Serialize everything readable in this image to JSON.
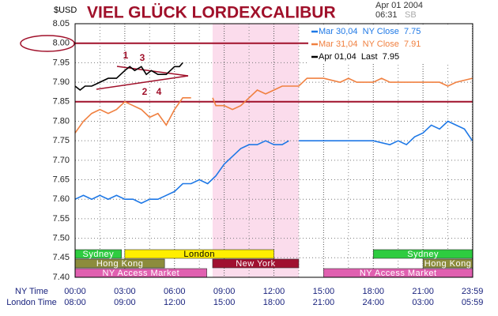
{
  "chart_data": {
    "type": "line",
    "title": "VIEL GLÜCK LORDEXCALIBUR",
    "ylabel": "$USD",
    "date": "Apr 01 2004",
    "time": "06:31",
    "tag": "SB",
    "xrow_labels": [
      "NY Time",
      "London Time"
    ],
    "xlim": [
      0,
      24
    ],
    "ylim": [
      7.4,
      8.05
    ],
    "yticks": [
      {
        "value": 8.05,
        "label": "8.05"
      },
      {
        "value": 8.0,
        "label": "8.00"
      },
      {
        "value": 7.95,
        "label": "7.95"
      },
      {
        "value": 7.9,
        "label": "7.90"
      },
      {
        "value": 7.85,
        "label": "7.85"
      },
      {
        "value": 7.8,
        "label": "7.80"
      },
      {
        "value": 7.75,
        "label": "7.75"
      },
      {
        "value": 7.7,
        "label": "7.70"
      },
      {
        "value": 7.65,
        "label": "7.65"
      },
      {
        "value": 7.6,
        "label": "7.60"
      },
      {
        "value": 7.55,
        "label": "7.55"
      },
      {
        "value": 7.5,
        "label": "7.50"
      },
      {
        "value": 7.45,
        "label": "7.45"
      },
      {
        "value": 7.4,
        "label": "7.40"
      }
    ],
    "xticks": [
      {
        "value": 0,
        "label": "00:00"
      },
      {
        "value": 3,
        "label": "03:00"
      },
      {
        "value": 6,
        "label": "06:00"
      },
      {
        "value": 9,
        "label": "09:00"
      },
      {
        "value": 12,
        "label": "12:00"
      },
      {
        "value": 15,
        "label": "15:00"
      },
      {
        "value": 18,
        "label": "18:00"
      },
      {
        "value": 21,
        "label": "21:00"
      },
      {
        "value": 23.98,
        "label": "23:59"
      }
    ],
    "xticks_london": [
      {
        "value": 0,
        "label": "08:00"
      },
      {
        "value": 3,
        "label": "09:00"
      },
      {
        "value": 6,
        "label": "12:00"
      },
      {
        "value": 9,
        "label": "15:00"
      },
      {
        "value": 12,
        "label": "18:00"
      },
      {
        "value": 15,
        "label": "21:00"
      },
      {
        "value": 18,
        "label": "24:00"
      },
      {
        "value": 21,
        "label": "03:00"
      },
      {
        "value": 23.98,
        "label": "05:59"
      }
    ],
    "xminor_ticks": [
      1.5,
      4.5,
      7.5,
      10.5,
      13.5,
      16.5,
      19.5,
      22.5
    ],
    "grid": true,
    "shaded_range": [
      8.3,
      13.5
    ],
    "shaded_color": "#fbdcec",
    "reference_lines": [
      {
        "value": 8.0,
        "to": 14.1
      },
      {
        "value": 7.85,
        "to": 24
      }
    ],
    "reference_color": "#a0102a",
    "annotations": [
      "1",
      "2",
      "3",
      "4"
    ],
    "sessions": [
      {
        "name": "Sydney",
        "start": 0,
        "end": 2.8,
        "row": 0,
        "color": "#2ecc40"
      },
      {
        "name": "London",
        "start": 3,
        "end": 12,
        "row": 0,
        "color": "#ffee00"
      },
      {
        "name": "Hong Kong",
        "start": 0,
        "end": 5.4,
        "row": 1,
        "color": "#8c8c3c"
      },
      {
        "name": "New York",
        "start": 8.3,
        "end": 13.5,
        "row": 1,
        "color": "#a01030"
      },
      {
        "name": "NY Access Market",
        "start": 0,
        "end": 7.95,
        "row": 2,
        "color": "#e060b0"
      },
      {
        "name": "Sydney",
        "start": 18,
        "end": 24,
        "row": 0,
        "color": "#2ecc40"
      },
      {
        "name": "Hong Kong",
        "start": 21,
        "end": 24,
        "row": 1,
        "color": "#8c8c3c"
      },
      {
        "name": "NY Access Market",
        "start": 15,
        "end": 24,
        "row": 2,
        "color": "#e060b0"
      }
    ],
    "series": [
      {
        "name": "Mar 30,04  NY Close  7.75",
        "color": "#1e78e6",
        "x": [
          0,
          0.5,
          1,
          1.5,
          2,
          2.5,
          3,
          3.5,
          4,
          4.5,
          5,
          5.5,
          6,
          6.5,
          7,
          7.5,
          8,
          8.5,
          9,
          9.5,
          10,
          10.5,
          11,
          11.5,
          12,
          12.5,
          12.9,
          13.1,
          13.5,
          14,
          15,
          16,
          17,
          18,
          19,
          19.5,
          20,
          20.5,
          21,
          21.5,
          22,
          22.5,
          23,
          23.5,
          23.98
        ],
        "values": [
          7.6,
          7.61,
          7.6,
          7.61,
          7.6,
          7.61,
          7.6,
          7.6,
          7.59,
          7.6,
          7.6,
          7.61,
          7.62,
          7.64,
          7.64,
          7.65,
          7.64,
          7.66,
          7.69,
          7.71,
          7.73,
          7.74,
          7.74,
          7.75,
          7.74,
          7.74,
          7.75,
          null,
          7.75,
          7.75,
          7.75,
          7.75,
          7.75,
          7.75,
          7.74,
          7.75,
          7.74,
          7.76,
          7.77,
          7.79,
          7.78,
          7.8,
          7.79,
          7.78,
          7.75
        ]
      },
      {
        "name": "Mar 31,04  NY Close  7.91",
        "color": "#f08040",
        "x": [
          0,
          0.5,
          1,
          1.5,
          2,
          2.5,
          3,
          3.5,
          4,
          4.5,
          5,
          5.5,
          6,
          6.5,
          7,
          7.7,
          8.3,
          8.5,
          9,
          9.5,
          10,
          10.5,
          11,
          11.5,
          12,
          12.5,
          13,
          13.5,
          14,
          15,
          16,
          16.5,
          17,
          18,
          18.5,
          19,
          20,
          21,
          22,
          22.5,
          23,
          23.98
        ],
        "values": [
          7.77,
          7.8,
          7.82,
          7.83,
          7.82,
          7.83,
          7.85,
          7.84,
          7.83,
          7.81,
          7.82,
          7.79,
          7.83,
          7.86,
          7.86,
          null,
          7.86,
          7.84,
          7.84,
          7.83,
          7.84,
          7.86,
          7.88,
          7.87,
          7.88,
          7.89,
          7.89,
          7.89,
          7.91,
          7.91,
          7.9,
          7.91,
          7.9,
          7.9,
          7.91,
          7.9,
          7.9,
          7.9,
          7.9,
          7.89,
          7.9,
          7.91
        ]
      },
      {
        "name": "Apr 01,04  Last  7.95",
        "color": "#000000",
        "x": [
          0,
          0.3,
          0.6,
          1,
          1.5,
          2,
          2.5,
          3,
          3.3,
          3.6,
          4,
          4.3,
          4.6,
          5,
          5.5,
          6,
          6.3,
          6.5
        ],
        "values": [
          7.89,
          7.88,
          7.89,
          7.89,
          7.9,
          7.91,
          7.91,
          7.93,
          7.94,
          7.93,
          7.94,
          7.92,
          7.93,
          7.92,
          7.92,
          7.94,
          7.94,
          7.95
        ]
      }
    ]
  }
}
